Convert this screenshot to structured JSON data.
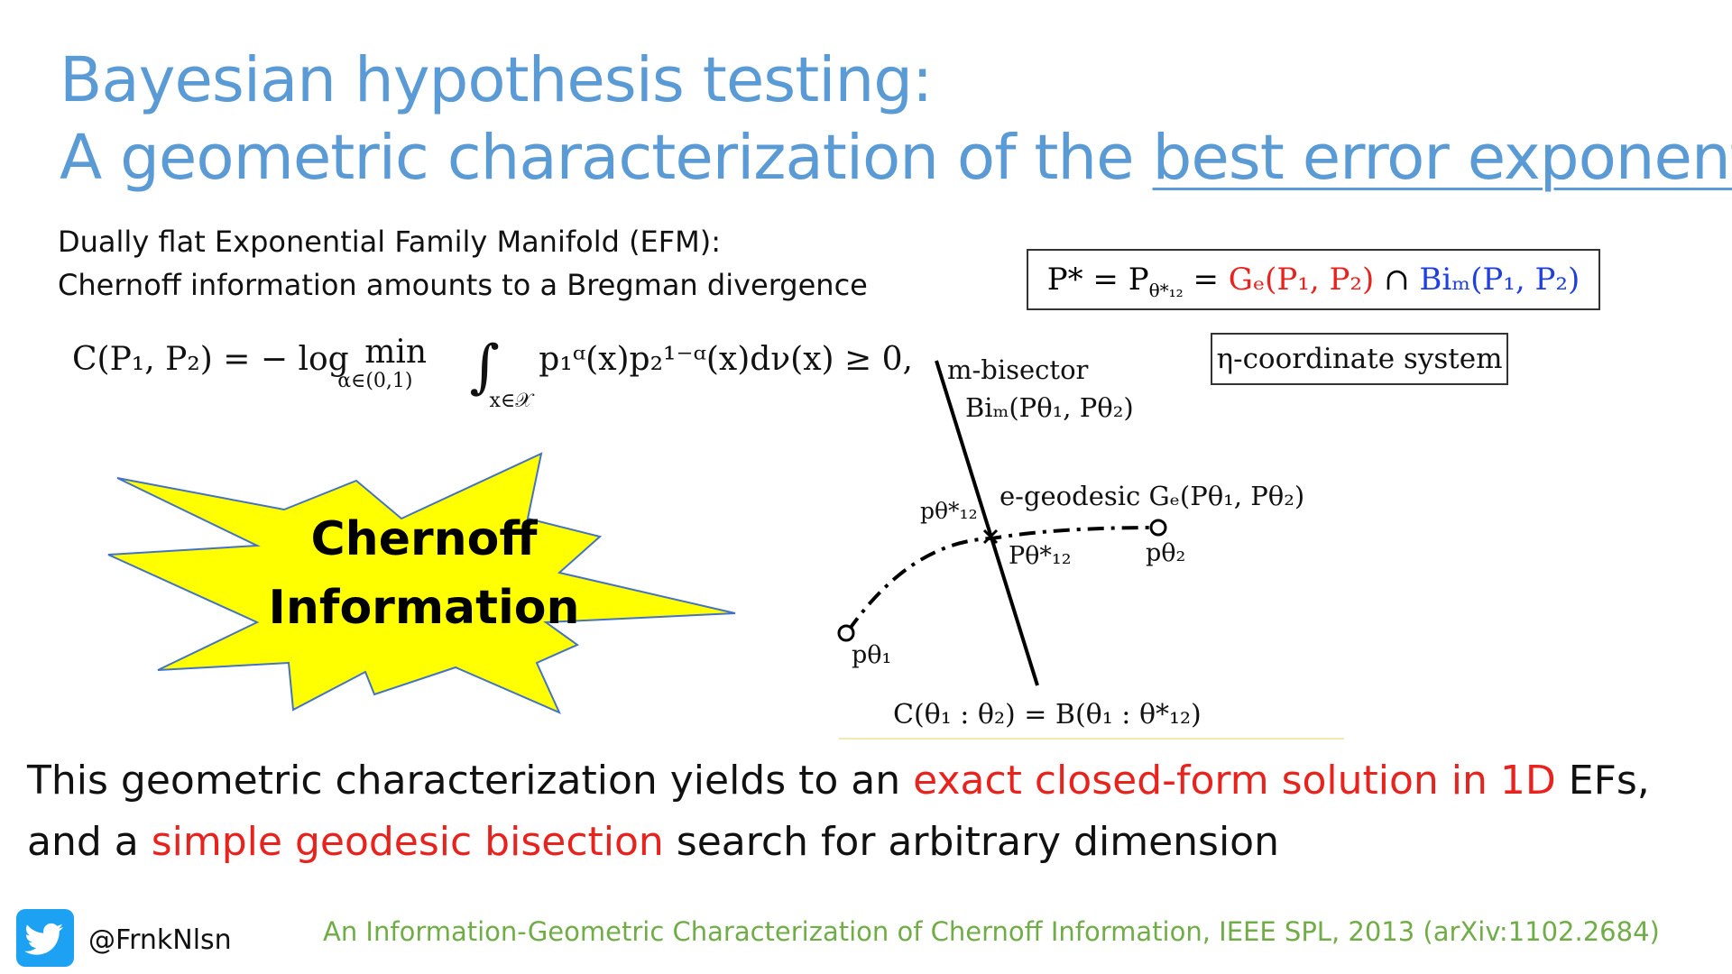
{
  "title": {
    "line1": "Bayesian hypothesis testing:",
    "line2_prefix": "A geometric characterization of  the ",
    "line2_underlined": "best error exponent"
  },
  "subtitle": {
    "line1": "Dually flat Exponential Family Manifold (EFM):",
    "line2": "Chernoff information amounts to a Bregman divergence"
  },
  "chernoff_formula": {
    "lhs": "C(P₁, P₂) = − log",
    "min_label": "min",
    "min_subscript": "α∈(0,1)",
    "integral": "∫",
    "integral_subscript": "x∈𝒳",
    "integrand": "p₁ᵅ(x)p₂¹⁻ᵅ(x)dν(x) ≥ 0,"
  },
  "pstar_formula": {
    "prefix": "P* = P",
    "theta_sub": "θ*₁₂",
    "equals": " = ",
    "geodesic": "Gₑ(P₁, P₂)",
    "cap": " ∩ ",
    "bisector": "Biₘ(P₁, P₂)"
  },
  "eta_box": "η-coordinate system",
  "star_burst": {
    "line1": "Chernoff",
    "line2": "Information",
    "fill_color": "#ffff00",
    "stroke_color": "#4472c4"
  },
  "diagram": {
    "bisector_label": "m-bisector",
    "bisector_formula": "Biₘ(Pθ₁, Pθ₂)",
    "geodesic_label": "e-geodesic Gₑ(Pθ₁, Pθ₂)",
    "p_theta_star_left": "pθ*₁₂",
    "P_theta_star": "Pθ*₁₂",
    "p_theta2": "pθ₂",
    "p_theta1": "pθ₁",
    "caption": "C(θ₁ : θ₂) = B(θ₁ : θ*₁₂)"
  },
  "conclusion": {
    "part1": "This geometric characterization yields to an ",
    "part2_red": "exact closed-form solution in 1D",
    "part3": " EFs,",
    "part4": "and a ",
    "part5_red": "simple geodesic bisection",
    "part6": " search for arbitrary dimension"
  },
  "footer": {
    "twitter_icon": "twitter-bird-icon",
    "handle": "@FrnkNlsn",
    "reference": "An Information-Geometric Characterization of Chernoff Information, IEEE SPL, 2013 (arXiv:1102.2684)"
  },
  "colors": {
    "title": "#5b9bd5",
    "red_text": "#e8231e",
    "blue_text": "#1f3fe0",
    "reference": "#70ad47",
    "twitter": "#1da1f2"
  }
}
